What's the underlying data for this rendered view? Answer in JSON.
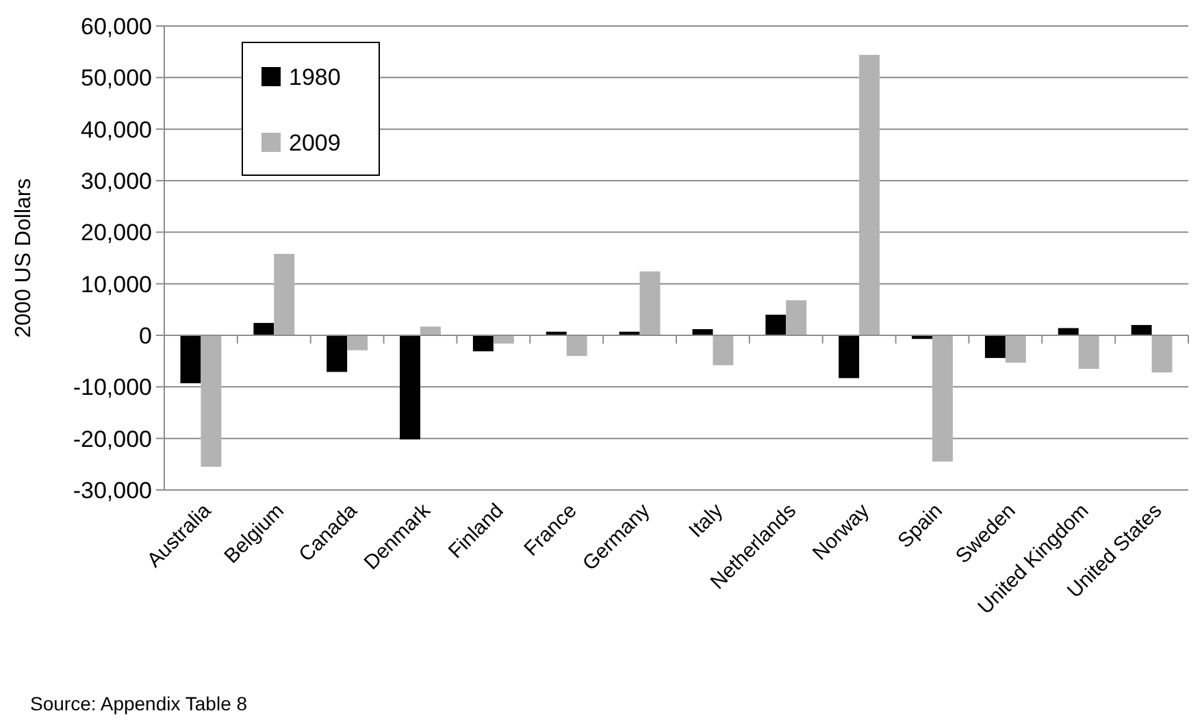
{
  "chart_data": {
    "type": "bar",
    "ylabel": "2000 US Dollars",
    "categories": [
      "Australia",
      "Belgium",
      "Canada",
      "Denmark",
      "Finland",
      "France",
      "Germany",
      "Italy",
      "Netherlands",
      "Norway",
      "Spain",
      "Sweden",
      "United Kingdom",
      "United States"
    ],
    "series": [
      {
        "name": "1980",
        "color": "#000000",
        "values": [
          -9300,
          2400,
          -7100,
          -20200,
          -3100,
          700,
          700,
          1200,
          4000,
          -8300,
          -700,
          -4400,
          1400,
          2000
        ]
      },
      {
        "name": "2009",
        "color": "#b3b3b3",
        "values": [
          -25500,
          15800,
          -2900,
          1700,
          -1600,
          -4000,
          12400,
          -5800,
          6800,
          54400,
          -24500,
          -5300,
          -6500,
          -7200
        ]
      }
    ],
    "ylim": [
      -30000,
      60000
    ],
    "yticks": [
      {
        "value": -30000,
        "label": "-30,000"
      },
      {
        "value": -20000,
        "label": "-20,000"
      },
      {
        "value": -10000,
        "label": "-10,000"
      },
      0,
      {
        "value": 10000,
        "label": "10,000"
      },
      {
        "value": 20000,
        "label": "20,000"
      },
      {
        "value": 30000,
        "label": "30,000"
      },
      {
        "value": 40000,
        "label": "40,000"
      },
      {
        "value": 50000,
        "label": "50,000"
      },
      {
        "value": 60000,
        "label": "60,000"
      }
    ],
    "grid": "y",
    "legend": "top left",
    "annotations": [
      "Source: Appendix Table 8"
    ]
  }
}
